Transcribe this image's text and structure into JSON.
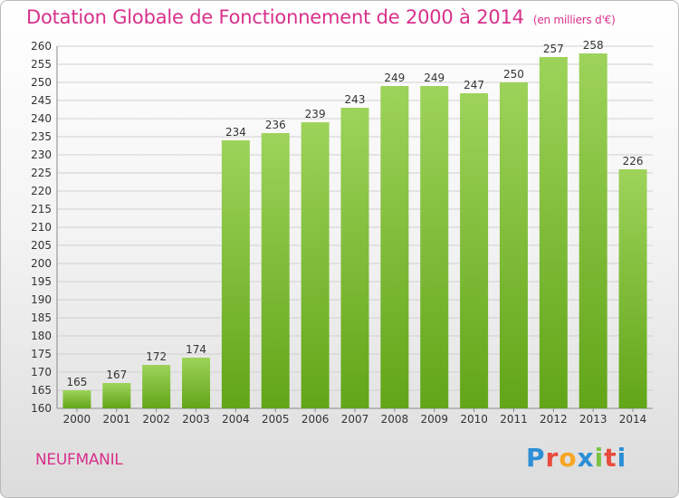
{
  "title": {
    "main": "Dotation Globale de Fonctionnement de 2000 à 2014",
    "unit": "(en milliers d'€)"
  },
  "footer": {
    "commune": "NEUFMANIL",
    "logo": "Proxiti"
  },
  "colors": {
    "title": "#d8308b",
    "bar_light": "#9dd35a",
    "bar_dark": "#62a518",
    "grid": "#d0d0d0"
  },
  "chart_data": {
    "type": "bar",
    "categories": [
      "2000",
      "2001",
      "2002",
      "2003",
      "2004",
      "2005",
      "2006",
      "2007",
      "2008",
      "2009",
      "2010",
      "2011",
      "2012",
      "2013",
      "2014"
    ],
    "values": [
      165,
      167,
      172,
      174,
      234,
      236,
      239,
      243,
      249,
      249,
      247,
      250,
      257,
      258,
      226
    ],
    "ylim": [
      160,
      260
    ],
    "ytick_step": 5,
    "grid": true,
    "title": "Dotation Globale de Fonctionnement de 2000 à 2014",
    "xlabel": "",
    "ylabel": ""
  }
}
